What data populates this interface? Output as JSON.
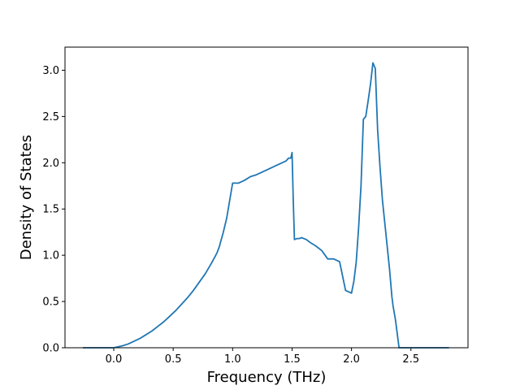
{
  "chart_data": {
    "type": "line",
    "title": "",
    "xlabel": "Frequency (THz)",
    "ylabel": "Density of States",
    "xlim": [
      -0.41,
      2.98
    ],
    "ylim": [
      0.0,
      3.25
    ],
    "xticks": [
      0.0,
      0.5,
      1.0,
      1.5,
      2.0,
      2.5
    ],
    "xtick_labels": [
      "0.0",
      "0.5",
      "1.0",
      "1.5",
      "2.0",
      "2.5"
    ],
    "yticks": [
      0.0,
      0.5,
      1.0,
      1.5,
      2.0,
      2.5,
      3.0
    ],
    "ytick_labels": [
      "0.0",
      "0.5",
      "1.0",
      "1.5",
      "2.0",
      "2.5",
      "3.0"
    ],
    "grid": false,
    "line_color": "#1f77b4",
    "series": [
      {
        "name": "",
        "x": [
          -0.26,
          0.0,
          0.07,
          0.12,
          0.17,
          0.22,
          0.27,
          0.32,
          0.37,
          0.42,
          0.47,
          0.52,
          0.57,
          0.62,
          0.67,
          0.72,
          0.77,
          0.82,
          0.85,
          0.87,
          0.89,
          0.9,
          0.92,
          0.95,
          1.0,
          1.05,
          1.1,
          1.15,
          1.2,
          1.25,
          1.3,
          1.35,
          1.4,
          1.45,
          1.47,
          1.49,
          1.5,
          1.51,
          1.52,
          1.54,
          1.56,
          1.58,
          1.6,
          1.62,
          1.65,
          1.7,
          1.75,
          1.8,
          1.85,
          1.9,
          1.95,
          2.0,
          2.02,
          2.04,
          2.06,
          2.08,
          2.1,
          2.12,
          2.14,
          2.16,
          2.18,
          2.2,
          2.22,
          2.24,
          2.26,
          2.28,
          2.3,
          2.32,
          2.34,
          2.35,
          2.37,
          2.4,
          2.43,
          2.46,
          2.49,
          2.52,
          2.55,
          2.57,
          2.6,
          2.82
        ],
        "y": [
          0.0,
          0.0,
          0.02,
          0.04,
          0.07,
          0.1,
          0.14,
          0.18,
          0.23,
          0.28,
          0.34,
          0.4,
          0.47,
          0.54,
          0.62,
          0.71,
          0.8,
          0.91,
          0.98,
          1.03,
          1.1,
          1.15,
          1.24,
          1.4,
          1.78,
          1.78,
          1.81,
          1.85,
          1.87,
          1.9,
          1.93,
          1.96,
          1.99,
          2.02,
          2.05,
          2.05,
          2.11,
          1.6,
          1.17,
          1.18,
          1.18,
          1.19,
          1.18,
          1.17,
          1.14,
          1.1,
          1.05,
          0.96,
          0.96,
          0.93,
          0.62,
          0.59,
          0.72,
          0.93,
          1.3,
          1.75,
          2.47,
          2.5,
          2.67,
          2.85,
          3.08,
          3.02,
          2.35,
          1.95,
          1.6,
          1.35,
          1.1,
          0.85,
          0.55,
          0.45,
          0.3,
          0.0,
          0.0,
          0.0,
          0.0,
          0.0,
          0.0,
          0.0,
          0.0,
          0.0
        ]
      }
    ]
  }
}
